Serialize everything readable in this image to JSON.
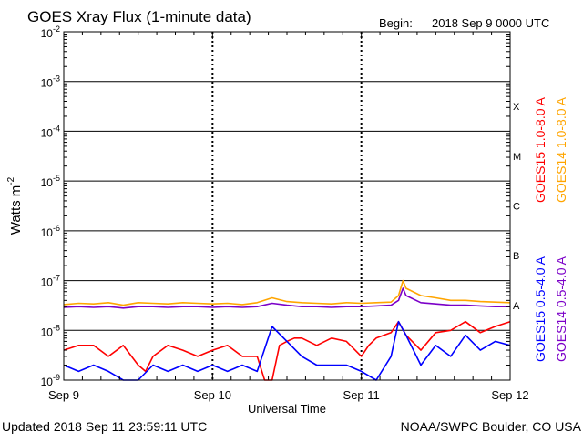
{
  "header": {
    "title": "GOES Xray Flux (1-minute data)",
    "begin_label": "Begin:",
    "begin_value": "2018 Sep 9 0000 UTC"
  },
  "footer": {
    "updated": "Updated 2018 Sep 11 23:59:11 UTC",
    "credit": "NOAA/SWPC Boulder, CO USA"
  },
  "chart_data": {
    "type": "line",
    "title": "GOES Xray Flux (1-minute data)",
    "xlabel": "Universal Time",
    "ylabel": "Watts m",
    "ylabel_superscript": "-2",
    "yscale": "log",
    "ylim": [
      1e-09,
      0.01
    ],
    "xlim_days": [
      0,
      3
    ],
    "x_ticks": [
      {
        "day": 0,
        "label": "Sep 9"
      },
      {
        "day": 1,
        "label": "Sep 10"
      },
      {
        "day": 2,
        "label": "Sep 11"
      },
      {
        "day": 3,
        "label": "Sep 12"
      }
    ],
    "y_ticks": [
      {
        "exp": -9,
        "base": "10",
        "sup": "-9"
      },
      {
        "exp": -8,
        "base": "10",
        "sup": "-8"
      },
      {
        "exp": -7,
        "base": "10",
        "sup": "-7"
      },
      {
        "exp": -6,
        "base": "10",
        "sup": "-6"
      },
      {
        "exp": -5,
        "base": "10",
        "sup": "-5"
      },
      {
        "exp": -4,
        "base": "10",
        "sup": "-4"
      },
      {
        "exp": -3,
        "base": "10",
        "sup": "-3"
      },
      {
        "exp": -2,
        "base": "10",
        "sup": "-2"
      }
    ],
    "flare_classes": [
      {
        "label": "A",
        "exp": -8
      },
      {
        "label": "B",
        "exp": -7
      },
      {
        "label": "C",
        "exp": -6
      },
      {
        "label": "M",
        "exp": -5
      },
      {
        "label": "X",
        "exp": -4
      }
    ],
    "grid": true,
    "legend_position": "right",
    "series": [
      {
        "name": "GOES15 1.0-8.0 A",
        "color": "#ff0000",
        "x": [
          0.0,
          0.1,
          0.2,
          0.3,
          0.4,
          0.5,
          0.55,
          0.6,
          0.7,
          0.8,
          0.9,
          1.0,
          1.1,
          1.2,
          1.3,
          1.35,
          1.4,
          1.45,
          1.5,
          1.55,
          1.6,
          1.7,
          1.8,
          1.9,
          2.0,
          2.05,
          2.1,
          2.2,
          2.25,
          2.3,
          2.4,
          2.5,
          2.6,
          2.7,
          2.8,
          2.9,
          3.0
        ],
        "values": [
          4e-09,
          5e-09,
          5e-09,
          3e-09,
          5e-09,
          2e-09,
          1.5e-09,
          3e-09,
          5e-09,
          4e-09,
          3e-09,
          4e-09,
          5e-09,
          3e-09,
          3e-09,
          1e-09,
          1e-09,
          5e-09,
          6e-09,
          7e-09,
          7e-09,
          5e-09,
          7e-09,
          6e-09,
          3e-09,
          5e-09,
          7e-09,
          9e-09,
          1.5e-08,
          8e-09,
          4e-09,
          9e-09,
          1e-08,
          1.5e-08,
          9e-09,
          1.2e-08,
          1.5e-08
        ]
      },
      {
        "name": "GOES14 1.0-8.0 A",
        "color": "#ffa500",
        "x": [
          0.0,
          0.1,
          0.2,
          0.3,
          0.4,
          0.5,
          0.6,
          0.7,
          0.8,
          0.9,
          1.0,
          1.1,
          1.2,
          1.3,
          1.4,
          1.5,
          1.6,
          1.7,
          1.8,
          1.9,
          2.0,
          2.1,
          2.2,
          2.25,
          2.28,
          2.3,
          2.4,
          2.5,
          2.6,
          2.7,
          2.8,
          2.9,
          3.0
        ],
        "values": [
          3.3e-08,
          3.5e-08,
          3.4e-08,
          3.6e-08,
          3.2e-08,
          3.6e-08,
          3.5e-08,
          3.4e-08,
          3.6e-08,
          3.5e-08,
          3.4e-08,
          3.5e-08,
          3.3e-08,
          3.6e-08,
          4.5e-08,
          3.8e-08,
          3.6e-08,
          3.5e-08,
          3.4e-08,
          3.6e-08,
          3.5e-08,
          3.6e-08,
          3.7e-08,
          5e-08,
          1e-07,
          7e-08,
          5e-08,
          4.5e-08,
          4e-08,
          4e-08,
          3.8e-08,
          3.7e-08,
          3.6e-08
        ]
      },
      {
        "name": "GOES15 0.5-4.0 A",
        "color": "#0000ff",
        "x": [
          0.0,
          0.1,
          0.2,
          0.3,
          0.4,
          0.5,
          0.6,
          0.7,
          0.8,
          0.9,
          1.0,
          1.1,
          1.2,
          1.3,
          1.4,
          1.5,
          1.6,
          1.7,
          1.8,
          1.9,
          2.0,
          2.1,
          2.2,
          2.25,
          2.3,
          2.4,
          2.5,
          2.6,
          2.7,
          2.8,
          2.9,
          3.0
        ],
        "values": [
          2e-09,
          1.5e-09,
          2e-09,
          1.5e-09,
          1e-09,
          1e-09,
          2e-09,
          1.5e-09,
          2e-09,
          1.5e-09,
          2e-09,
          1.5e-09,
          2e-09,
          1.5e-09,
          1.2e-08,
          6e-09,
          3e-09,
          2e-09,
          2e-09,
          2e-09,
          1.5e-09,
          1e-09,
          3e-09,
          1.5e-08,
          8e-09,
          2e-09,
          5e-09,
          3e-09,
          8e-09,
          4e-09,
          6e-09,
          5e-09
        ]
      },
      {
        "name": "GOES14 0.5-4.0 A",
        "color": "#7b00c8",
        "x": [
          0.0,
          0.1,
          0.2,
          0.3,
          0.4,
          0.5,
          0.6,
          0.7,
          0.8,
          0.9,
          1.0,
          1.1,
          1.2,
          1.3,
          1.4,
          1.5,
          1.6,
          1.7,
          1.8,
          1.9,
          2.0,
          2.1,
          2.2,
          2.25,
          2.28,
          2.3,
          2.4,
          2.5,
          2.6,
          2.7,
          2.8,
          2.9,
          3.0
        ],
        "values": [
          2.9e-08,
          3e-08,
          2.9e-08,
          3e-08,
          2.8e-08,
          3e-08,
          3e-08,
          2.9e-08,
          3e-08,
          3e-08,
          2.9e-08,
          3e-08,
          2.9e-08,
          3e-08,
          3.5e-08,
          3.2e-08,
          3e-08,
          3e-08,
          2.9e-08,
          3e-08,
          3e-08,
          3.1e-08,
          3.2e-08,
          4e-08,
          7e-08,
          5e-08,
          3.6e-08,
          3.4e-08,
          3.2e-08,
          3.2e-08,
          3.1e-08,
          3e-08,
          3e-08
        ]
      }
    ]
  }
}
